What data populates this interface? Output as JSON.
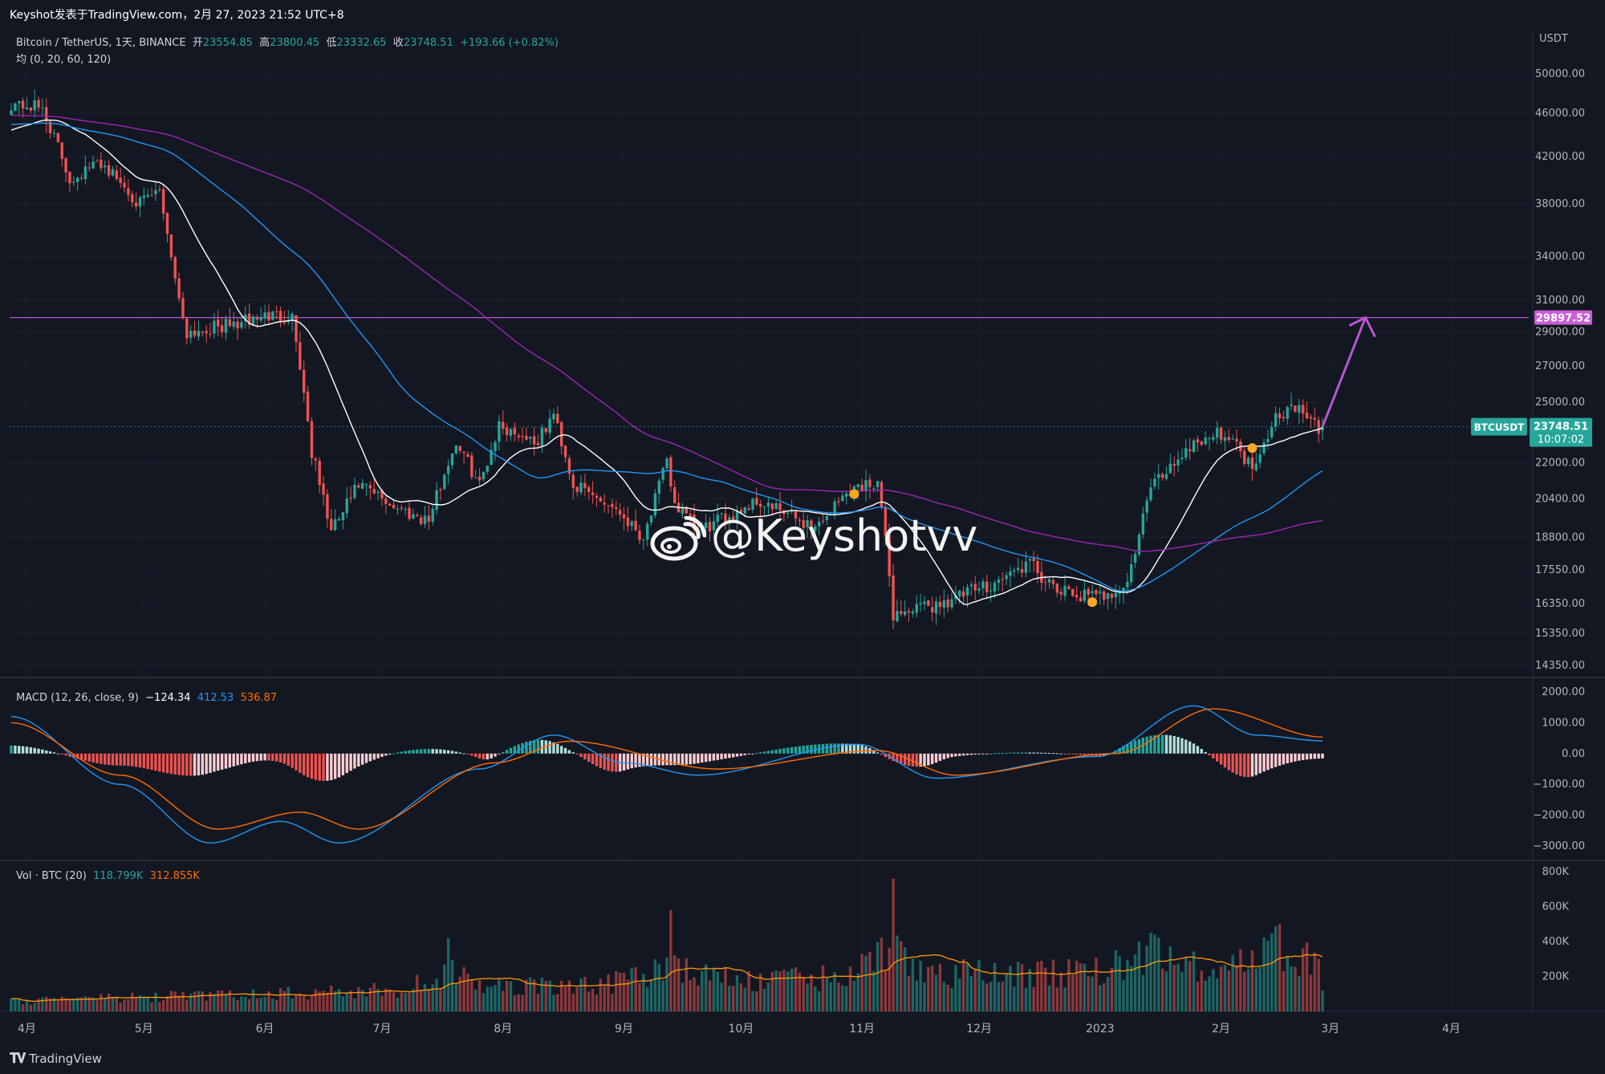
{
  "header": {
    "title": "Keyshot发表于TradingView.com，2月 27, 2023 21:52 UTC+8"
  },
  "legend_main": {
    "symbol": "Bitcoin / TetherUS, 1天, BINANCE",
    "open_label": "开",
    "open": "23554.85",
    "high_label": "高",
    "high": "23800.45",
    "low_label": "低",
    "low": "23332.65",
    "close_label": "收",
    "close": "23748.51",
    "change": "+193.66 (+0.82%)",
    "ma_line": "均 (0, 20, 60, 120)"
  },
  "legend_macd": {
    "label": "MACD (12, 26, close, 9)",
    "hist": "−124.34",
    "macd": "412.53",
    "signal": "536.87"
  },
  "legend_vol": {
    "label": "Vol · BTC (20)",
    "vol": "118.799K",
    "vol_ma": "312.855K"
  },
  "price_axis": {
    "currency": "USDT",
    "ticks": [
      "50000.00",
      "46000.00",
      "42000.00",
      "38000.00",
      "34000.00",
      "31000.00",
      "29000.00",
      "27000.00",
      "25000.00",
      "22000.00",
      "20400.00",
      "18800.00",
      "17550.00",
      "16350.00",
      "15350.00",
      "14350.00"
    ],
    "hline_label": "29897.52",
    "symbol_tag": "BTCUSDT",
    "last_price": "23748.51",
    "countdown": "10:07:02"
  },
  "macd_axis": {
    "ticks": [
      "2000.00",
      "1000.00",
      "0.00",
      "−1000.00",
      "−2000.00",
      "−3000.00"
    ]
  },
  "vol_axis": {
    "ticks": [
      "800K",
      "600K",
      "400K",
      "200K"
    ]
  },
  "time_axis": {
    "ticks": [
      "4月",
      "5月",
      "6月",
      "7月",
      "8月",
      "9月",
      "10月",
      "11月",
      "12月",
      "2023",
      "2月",
      "3月",
      "4月"
    ]
  },
  "watermark": "@Keyshotvv",
  "footer": {
    "brand": "TradingView"
  },
  "colors": {
    "background": "#131722",
    "up": "#26a69a",
    "down": "#ef5350",
    "ma20": "#ffffff",
    "ma60": "#2196f3",
    "ma120": "#9c27b0",
    "hline": "#b657d0",
    "macd": "#2196f3",
    "signal": "#ff6d00"
  },
  "chart_data": {
    "type": "candlestick",
    "symbol": "Bitcoin / TetherUS",
    "interval": "1天",
    "scale": "log",
    "y_range": [
      14000,
      52000
    ],
    "key_prices": {
      "horizontal_line": 29897.52,
      "last": 23748.51,
      "open": 23554.85,
      "high": 23800.45,
      "low": 23332.65
    },
    "price_path": [
      {
        "date": "2022-03-28",
        "close": 47000
      },
      {
        "date": "2022-04-05",
        "close": 46500
      },
      {
        "date": "2022-04-12",
        "close": 40000
      },
      {
        "date": "2022-04-20",
        "close": 41500
      },
      {
        "date": "2022-04-30",
        "close": 38000
      },
      {
        "date": "2022-05-05",
        "close": 39000
      },
      {
        "date": "2022-05-10",
        "close": 31000
      },
      {
        "date": "2022-05-12",
        "close": 29000
      },
      {
        "date": "2022-05-25",
        "close": 29500
      },
      {
        "date": "2022-06-01",
        "close": 30000
      },
      {
        "date": "2022-06-08",
        "close": 30000
      },
      {
        "date": "2022-06-13",
        "close": 22500
      },
      {
        "date": "2022-06-18",
        "close": 19000
      },
      {
        "date": "2022-06-25",
        "close": 21000
      },
      {
        "date": "2022-07-05",
        "close": 20000
      },
      {
        "date": "2022-07-13",
        "close": 19500
      },
      {
        "date": "2022-07-20",
        "close": 23000
      },
      {
        "date": "2022-07-26",
        "close": 21000
      },
      {
        "date": "2022-07-31",
        "close": 23800
      },
      {
        "date": "2022-08-10",
        "close": 23000
      },
      {
        "date": "2022-08-14",
        "close": 24400
      },
      {
        "date": "2022-08-19",
        "close": 21000
      },
      {
        "date": "2022-08-30",
        "close": 20000
      },
      {
        "date": "2022-09-06",
        "close": 18800
      },
      {
        "date": "2022-09-12",
        "close": 22000
      },
      {
        "date": "2022-09-14",
        "close": 20200
      },
      {
        "date": "2022-09-20",
        "close": 19000
      },
      {
        "date": "2022-10-05",
        "close": 20300
      },
      {
        "date": "2022-10-20",
        "close": 19200
      },
      {
        "date": "2022-10-29",
        "close": 20800
      },
      {
        "date": "2022-11-05",
        "close": 21200
      },
      {
        "date": "2022-11-09",
        "close": 16000
      },
      {
        "date": "2022-11-20",
        "close": 16300
      },
      {
        "date": "2022-12-05",
        "close": 17100
      },
      {
        "date": "2022-12-14",
        "close": 17800
      },
      {
        "date": "2022-12-20",
        "close": 16800
      },
      {
        "date": "2022-12-31",
        "close": 16550
      },
      {
        "date": "2023-01-08",
        "close": 17000
      },
      {
        "date": "2023-01-14",
        "close": 20900
      },
      {
        "date": "2023-01-25",
        "close": 23000
      },
      {
        "date": "2023-02-02",
        "close": 23500
      },
      {
        "date": "2023-02-09",
        "close": 21800
      },
      {
        "date": "2023-02-15",
        "close": 24300
      },
      {
        "date": "2023-02-20",
        "close": 24800
      },
      {
        "date": "2023-02-26",
        "close": 23550
      },
      {
        "date": "2023-02-27",
        "close": 23748.51
      }
    ],
    "projection": {
      "from": {
        "date": "2023-02-27",
        "price": 23748.51
      },
      "to": {
        "date": "2023-03-10",
        "price": 29897.52
      }
    },
    "moving_averages": [
      {
        "name": "MA20",
        "color": "#ffffff"
      },
      {
        "name": "MA60",
        "color": "#2196f3"
      },
      {
        "name": "MA120",
        "color": "#9c27b0"
      }
    ],
    "macd": {
      "params": "12, 26, close, 9",
      "ylim": [
        -3000,
        2000
      ],
      "macd_path": [
        {
          "date": "2022-03-28",
          "value": 1200
        },
        {
          "date": "2022-04-25",
          "value": -1000
        },
        {
          "date": "2022-05-18",
          "value": -2900
        },
        {
          "date": "2022-06-05",
          "value": -2200
        },
        {
          "date": "2022-06-20",
          "value": -2900
        },
        {
          "date": "2022-07-26",
          "value": -500
        },
        {
          "date": "2022-08-14",
          "value": 600
        },
        {
          "date": "2022-09-01",
          "value": -300
        },
        {
          "date": "2022-09-20",
          "value": -700
        },
        {
          "date": "2022-10-31",
          "value": 300
        },
        {
          "date": "2022-11-20",
          "value": -800
        },
        {
          "date": "2022-12-31",
          "value": -100
        },
        {
          "date": "2023-01-25",
          "value": 1550
        },
        {
          "date": "2023-02-10",
          "value": 600
        },
        {
          "date": "2023-02-27",
          "value": 412.53
        }
      ],
      "signal_path": [
        {
          "date": "2022-03-28",
          "value": 1000
        },
        {
          "date": "2022-04-25",
          "value": -700
        },
        {
          "date": "2022-05-20",
          "value": -2450
        },
        {
          "date": "2022-06-10",
          "value": -1900
        },
        {
          "date": "2022-06-25",
          "value": -2450
        },
        {
          "date": "2022-07-30",
          "value": -300
        },
        {
          "date": "2022-08-18",
          "value": 400
        },
        {
          "date": "2022-09-25",
          "value": -500
        },
        {
          "date": "2022-11-05",
          "value": 100
        },
        {
          "date": "2022-11-25",
          "value": -700
        },
        {
          "date": "2023-01-05",
          "value": 0
        },
        {
          "date": "2023-01-30",
          "value": 1450
        },
        {
          "date": "2023-02-27",
          "value": 536.87
        }
      ],
      "last_hist": -124.34
    },
    "volume": {
      "unit": "BTC",
      "ma_period": 20,
      "ylim": [
        0,
        800000
      ],
      "last": 118799,
      "last_ma": 312855,
      "peaks": [
        {
          "date": "2022-11-09",
          "value": 760000
        },
        {
          "date": "2022-09-13",
          "value": 580000
        },
        {
          "date": "2022-07-18",
          "value": 420000
        },
        {
          "date": "2023-01-14",
          "value": 450000
        },
        {
          "date": "2023-02-16",
          "value": 500000
        }
      ]
    }
  }
}
